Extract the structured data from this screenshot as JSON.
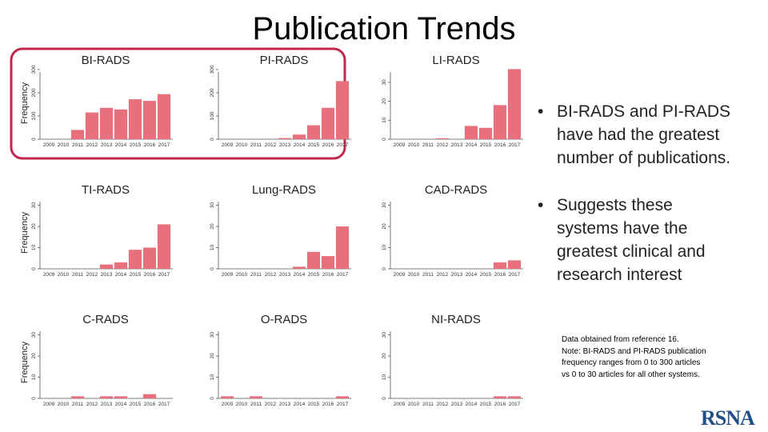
{
  "title": "Publication Trends",
  "bullets": [
    "BI-RADS and PI-RADS have had the greatest number of publications.",
    "Suggests these systems have the greatest clinical and research interest"
  ],
  "note": [
    "Data obtained from reference 16.",
    "Note: BI-RADS and PI-RADS publication",
    "frequency ranges from 0 to 300 articles",
    "vs 0 to 30 articles for all other systems."
  ],
  "logo": "RSNA",
  "chart_data": [
    {
      "type": "bar",
      "title": "BI-RADS",
      "y_label": "Frequency",
      "categories": [
        "2009",
        "2010",
        "2011",
        "2012",
        "2013",
        "2014",
        "2015",
        "2016",
        "2017"
      ],
      "values": [
        0,
        0,
        40,
        115,
        135,
        128,
        172,
        165,
        194
      ],
      "color": "#e8707c",
      "ylim": [
        0,
        310
      ],
      "yticks": [
        0,
        100,
        200,
        300
      ]
    },
    {
      "type": "bar",
      "title": "PI-RADS",
      "categories": [
        "2009",
        "2010",
        "2011",
        "2012",
        "2013",
        "2014",
        "2015",
        "2016",
        "2017"
      ],
      "values": [
        0,
        0,
        0,
        0,
        5,
        20,
        60,
        135,
        250
      ],
      "color": "#e8707c",
      "ylim": [
        0,
        310
      ],
      "yticks": [
        0,
        100,
        200,
        300
      ]
    },
    {
      "type": "bar",
      "title": "LI-RADS",
      "categories": [
        "2009",
        "2010",
        "2011",
        "2012",
        "2013",
        "2014",
        "2015",
        "2016",
        "2017"
      ],
      "values": [
        0,
        0,
        0,
        0.5,
        0,
        7,
        6,
        18,
        37
      ],
      "color": "#e8707c",
      "ylim": [
        0,
        38
      ],
      "yticks": [
        0,
        10,
        20,
        30
      ]
    },
    {
      "type": "bar",
      "title": "TI-RADS",
      "y_label": "Frequency",
      "categories": [
        "2009",
        "2010",
        "2011",
        "2012",
        "2013",
        "2014",
        "2015",
        "2016",
        "2017"
      ],
      "values": [
        0,
        0,
        0,
        0,
        2,
        3,
        9,
        10,
        21
      ],
      "color": "#e8707c",
      "ylim": [
        0,
        34
      ],
      "yticks": [
        0,
        10,
        20,
        30
      ]
    },
    {
      "type": "bar",
      "title": "Lung-RADS",
      "categories": [
        "2009",
        "2010",
        "2011",
        "2012",
        "2013",
        "2014",
        "2015",
        "2016",
        "2017"
      ],
      "values": [
        0,
        0,
        0,
        0,
        0,
        1,
        8,
        6,
        20
      ],
      "color": "#e8707c",
      "ylim": [
        0,
        34
      ],
      "yticks": [
        0,
        10,
        20,
        30
      ]
    },
    {
      "type": "bar",
      "title": "CAD-RADS",
      "categories": [
        "2009",
        "2010",
        "2011",
        "2012",
        "2013",
        "2014",
        "2015",
        "2016",
        "2017"
      ],
      "values": [
        0,
        0,
        0,
        0,
        0,
        0,
        0,
        3,
        4
      ],
      "color": "#e8707c",
      "ylim": [
        0,
        34
      ],
      "yticks": [
        0,
        10,
        20,
        30
      ]
    },
    {
      "type": "bar",
      "title": "C-RADS",
      "y_label": "Frequency",
      "categories": [
        "2009",
        "2010",
        "2011",
        "2012",
        "2013",
        "2014",
        "2015",
        "2016",
        "2017"
      ],
      "values": [
        0,
        0,
        1,
        0,
        1,
        1,
        0,
        2,
        0
      ],
      "color": "#e8707c",
      "ylim": [
        0,
        34
      ],
      "yticks": [
        0,
        10,
        20,
        30
      ]
    },
    {
      "type": "bar",
      "title": "O-RADS",
      "categories": [
        "2009",
        "2010",
        "2011",
        "2012",
        "2013",
        "2014",
        "2015",
        "2016",
        "2017"
      ],
      "values": [
        1,
        0,
        1,
        0,
        0,
        0,
        0,
        0,
        1
      ],
      "color": "#e8707c",
      "ylim": [
        0,
        34
      ],
      "yticks": [
        0,
        10,
        20,
        30
      ]
    },
    {
      "type": "bar",
      "title": "NI-RADS",
      "categories": [
        "2009",
        "2010",
        "2011",
        "2012",
        "2013",
        "2014",
        "2015",
        "2016",
        "2017"
      ],
      "values": [
        0,
        0,
        0,
        0,
        0,
        0,
        0,
        1,
        1
      ],
      "color": "#e8707c",
      "ylim": [
        0,
        34
      ],
      "yticks": [
        0,
        10,
        20,
        30
      ]
    }
  ]
}
